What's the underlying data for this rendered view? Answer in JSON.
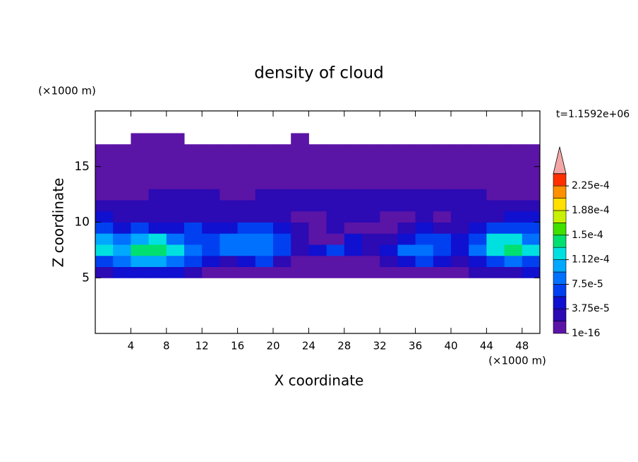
{
  "chart_data": {
    "type": "contour",
    "title": "density of cloud",
    "xlabel": "X coordinate",
    "ylabel": "Z coordinate",
    "x_unit": "(×1000 m)",
    "y_unit": "(×1000 m)",
    "annotation": "t=1.1592e+06",
    "xlim": [
      0,
      50
    ],
    "ylim": [
      0,
      20
    ],
    "xticks": [
      4,
      8,
      12,
      16,
      20,
      24,
      28,
      32,
      36,
      40,
      44,
      48
    ],
    "yticks": [
      5,
      10,
      15
    ],
    "xbins": [
      0,
      2,
      4,
      6,
      8,
      10,
      12,
      14,
      16,
      18,
      20,
      22,
      24,
      26,
      28,
      30,
      32,
      34,
      36,
      38,
      40,
      42,
      44,
      46,
      48,
      50
    ],
    "ybins": [
      5,
      6,
      7,
      8,
      9,
      10,
      11,
      12,
      13,
      14,
      15,
      16,
      17,
      18
    ],
    "z": [
      [
        2.5e-05,
        4.5e-05,
        4.5e-05,
        4.5e-05,
        4.5e-05,
        2.5e-05,
        5e-06,
        5e-06,
        5e-06,
        5e-06,
        5e-06,
        5e-06,
        5e-06,
        5e-06,
        5e-06,
        5e-06,
        5e-06,
        5e-06,
        5e-06,
        5e-06,
        5e-06,
        2.5e-05,
        2.5e-05,
        2.5e-05,
        4.5e-05
      ],
      [
        6.5e-05,
        8.5e-05,
        0.0001,
        0.0001,
        8.5e-05,
        6.5e-05,
        4.5e-05,
        2.5e-05,
        4.5e-05,
        6.5e-05,
        2.5e-05,
        5e-06,
        5e-06,
        5e-06,
        5e-06,
        5e-06,
        2.5e-05,
        4.5e-05,
        6.5e-05,
        4.5e-05,
        2.5e-05,
        4.5e-05,
        6.5e-05,
        8.5e-05,
        6.5e-05
      ],
      [
        0.00012,
        0.0001,
        0.00014,
        0.00014,
        0.00012,
        8.5e-05,
        6.5e-05,
        8.5e-05,
        8.5e-05,
        8.5e-05,
        6.5e-05,
        2.5e-05,
        4.5e-05,
        6.5e-05,
        4.5e-05,
        2.5e-05,
        4.5e-05,
        8.5e-05,
        8.5e-05,
        6.5e-05,
        4.5e-05,
        8.5e-05,
        0.00012,
        0.00014,
        0.00012
      ],
      [
        0.0001,
        8.5e-05,
        0.0001,
        0.00012,
        8.5e-05,
        6.5e-05,
        6.5e-05,
        8.5e-05,
        8.5e-05,
        8.5e-05,
        6.5e-05,
        2.5e-05,
        5e-06,
        5e-06,
        4.5e-05,
        2.5e-05,
        2.5e-05,
        4.5e-05,
        6.5e-05,
        6.5e-05,
        4.5e-05,
        6.5e-05,
        0.00012,
        0.00012,
        8.5e-05
      ],
      [
        6.5e-05,
        4.5e-05,
        6.5e-05,
        4.5e-05,
        4.5e-05,
        6.5e-05,
        4.5e-05,
        4.5e-05,
        6.5e-05,
        6.5e-05,
        4.5e-05,
        2.5e-05,
        5e-06,
        2.5e-05,
        5e-06,
        5e-06,
        5e-06,
        2.5e-05,
        4.5e-05,
        2.5e-05,
        2.5e-05,
        4.5e-05,
        6.5e-05,
        6.5e-05,
        6.5e-05
      ],
      [
        4.5e-05,
        2.5e-05,
        2.5e-05,
        2.5e-05,
        2.5e-05,
        2.5e-05,
        2.5e-05,
        2.5e-05,
        2.5e-05,
        2.5e-05,
        2.5e-05,
        5e-06,
        5e-06,
        2.5e-05,
        2.5e-05,
        2.5e-05,
        5e-06,
        5e-06,
        2.5e-05,
        5e-06,
        2.5e-05,
        2.5e-05,
        2.5e-05,
        4.5e-05,
        4.5e-05
      ],
      [
        2.5e-05,
        2.5e-05,
        2.5e-05,
        2.5e-05,
        2.5e-05,
        2.5e-05,
        2.5e-05,
        2.5e-05,
        2.5e-05,
        2.5e-05,
        2.5e-05,
        2.5e-05,
        2.5e-05,
        2.5e-05,
        2.5e-05,
        2.5e-05,
        2.5e-05,
        2.5e-05,
        2.5e-05,
        2.5e-05,
        2.5e-05,
        2.5e-05,
        2.5e-05,
        2.5e-05,
        2.5e-05
      ],
      [
        5e-06,
        5e-06,
        5e-06,
        2.5e-05,
        2.5e-05,
        2.5e-05,
        2.5e-05,
        5e-06,
        5e-06,
        2.5e-05,
        2.5e-05,
        2.5e-05,
        2.5e-05,
        2.5e-05,
        2.5e-05,
        2.5e-05,
        2.5e-05,
        2.5e-05,
        2.5e-05,
        2.5e-05,
        2.5e-05,
        2.5e-05,
        5e-06,
        5e-06,
        5e-06
      ],
      [
        5e-06,
        5e-06,
        5e-06,
        5e-06,
        5e-06,
        5e-06,
        5e-06,
        5e-06,
        5e-06,
        5e-06,
        5e-06,
        5e-06,
        5e-06,
        5e-06,
        5e-06,
        5e-06,
        5e-06,
        5e-06,
        5e-06,
        5e-06,
        5e-06,
        5e-06,
        5e-06,
        5e-06,
        5e-06
      ],
      [
        5e-06,
        5e-06,
        5e-06,
        5e-06,
        5e-06,
        5e-06,
        5e-06,
        5e-06,
        5e-06,
        5e-06,
        5e-06,
        5e-06,
        5e-06,
        5e-06,
        5e-06,
        5e-06,
        5e-06,
        5e-06,
        5e-06,
        5e-06,
        5e-06,
        5e-06,
        5e-06,
        5e-06,
        5e-06
      ],
      [
        5e-06,
        5e-06,
        5e-06,
        5e-06,
        5e-06,
        5e-06,
        5e-06,
        5e-06,
        5e-06,
        5e-06,
        5e-06,
        5e-06,
        5e-06,
        5e-06,
        5e-06,
        5e-06,
        5e-06,
        5e-06,
        5e-06,
        5e-06,
        5e-06,
        5e-06,
        5e-06,
        5e-06,
        5e-06
      ],
      [
        5e-06,
        5e-06,
        5e-06,
        5e-06,
        5e-06,
        5e-06,
        5e-06,
        5e-06,
        5e-06,
        5e-06,
        5e-06,
        5e-06,
        5e-06,
        5e-06,
        5e-06,
        5e-06,
        5e-06,
        5e-06,
        5e-06,
        5e-06,
        5e-06,
        5e-06,
        5e-06,
        5e-06,
        5e-06
      ],
      [
        0,
        0,
        5e-06,
        5e-06,
        5e-06,
        0,
        0,
        0,
        0,
        0,
        0,
        5e-06,
        0,
        0,
        0,
        0,
        0,
        0,
        0,
        0,
        0,
        0,
        0,
        0,
        0
      ]
    ],
    "levels": [
      1e-16,
      1.875e-05,
      3.75e-05,
      5.625e-05,
      7.5e-05,
      9.375e-05,
      0.0001125,
      0.00013125,
      0.00015,
      0.00016875,
      0.0001875,
      0.00020625,
      0.000225,
      0.00024375
    ],
    "colors": [
      "#5a14a6",
      "#2c0ab4",
      "#1010d0",
      "#0040f0",
      "#0070ff",
      "#00a8ff",
      "#00e0e0",
      "#00e070",
      "#40e000",
      "#c8f000",
      "#ffe000",
      "#ff9000",
      "#ff3000"
    ],
    "extend_color": "#f4a6a6",
    "colorbar_ticks": [
      {
        "value": 1e-16,
        "label": "1e-16"
      },
      {
        "value": 3.75e-05,
        "label": "3.75e-5"
      },
      {
        "value": 7.5e-05,
        "label": "7.5e-5"
      },
      {
        "value": 0.0001125,
        "label": "1.12e-4"
      },
      {
        "value": 0.00015,
        "label": "1.5e-4"
      },
      {
        "value": 0.0001875,
        "label": "1.88e-4"
      },
      {
        "value": 0.000225,
        "label": "2.25e-4"
      }
    ]
  }
}
